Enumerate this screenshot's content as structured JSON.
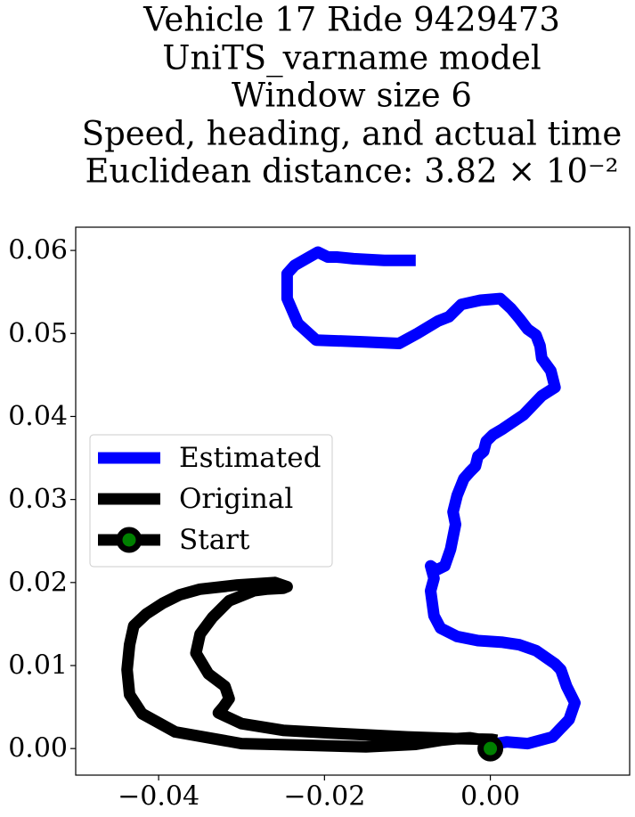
{
  "chart_data": {
    "type": "line",
    "title_lines": [
      "Vehicle 17 Ride 9429473",
      "UniTS_varname model",
      "Window size 6",
      "Speed, heading, and actual time",
      "Euclidean distance: 3.82 × 10⁻²"
    ],
    "xlabel": "",
    "ylabel": "",
    "xlim": [
      -0.05,
      0.0168
    ],
    "ylim": [
      -0.0032,
      0.0628
    ],
    "x_ticks": [
      {
        "value": -0.04,
        "label": "−0.04"
      },
      {
        "value": -0.02,
        "label": "−0.02"
      },
      {
        "value": 0.0,
        "label": "0.00"
      }
    ],
    "y_ticks": [
      {
        "value": 0.0,
        "label": "0.00"
      },
      {
        "value": 0.01,
        "label": "0.01"
      },
      {
        "value": 0.02,
        "label": "0.02"
      },
      {
        "value": 0.03,
        "label": "0.03"
      },
      {
        "value": 0.04,
        "label": "0.04"
      },
      {
        "value": 0.05,
        "label": "0.05"
      },
      {
        "value": 0.06,
        "label": "0.06"
      }
    ],
    "grid": false,
    "legend_position": "center-left",
    "legend": [
      {
        "label": "Estimated",
        "color": "#0000ff",
        "marker": false
      },
      {
        "label": "Original",
        "color": "#000000",
        "marker": false
      },
      {
        "label": "Start",
        "color": "#000000",
        "marker": true,
        "marker_face": "#008000"
      }
    ],
    "series": [
      {
        "name": "Estimated",
        "color": "#0000ff",
        "x": [
          0.0,
          0.002,
          0.0045,
          0.0075,
          0.0095,
          0.0102,
          0.0092,
          0.0085,
          0.0078,
          0.0055,
          0.0035,
          0.0015,
          -0.0015,
          -0.004,
          -0.006,
          -0.0068,
          -0.007,
          -0.0072,
          -0.0068,
          -0.0072,
          -0.0065,
          -0.0055,
          -0.0048,
          -0.0042,
          -0.0045,
          -0.004,
          -0.0032,
          -0.0025,
          -0.0018,
          -0.0015,
          -0.0008,
          -0.0005,
          0.0003,
          0.0015,
          0.004,
          0.0062,
          0.0078,
          0.0073,
          0.0062,
          0.006,
          0.0055,
          0.0045,
          0.0035,
          0.0025,
          0.0012,
          -0.0012,
          -0.0035,
          -0.005,
          -0.0063,
          -0.0088,
          -0.011,
          -0.0155,
          -0.021,
          -0.0232,
          -0.0245,
          -0.0245,
          -0.0236,
          -0.0222,
          -0.0208,
          -0.0196,
          -0.0185,
          -0.0165,
          -0.0128,
          -0.0095,
          -0.009
        ],
        "y": [
          0.0005,
          0.0008,
          0.0006,
          0.0014,
          0.0035,
          0.0055,
          0.0075,
          0.0095,
          0.0102,
          0.0118,
          0.0125,
          0.0128,
          0.013,
          0.0135,
          0.0145,
          0.016,
          0.0175,
          0.019,
          0.0205,
          0.022,
          0.0215,
          0.022,
          0.024,
          0.027,
          0.0285,
          0.0305,
          0.0325,
          0.0333,
          0.034,
          0.0352,
          0.0358,
          0.037,
          0.0378,
          0.0385,
          0.0402,
          0.0425,
          0.0435,
          0.0455,
          0.047,
          0.0485,
          0.0498,
          0.0505,
          0.0518,
          0.053,
          0.0542,
          0.054,
          0.0535,
          0.052,
          0.0515,
          0.05,
          0.0488,
          0.049,
          0.0492,
          0.0512,
          0.0542,
          0.0572,
          0.0582,
          0.059,
          0.0598,
          0.0592,
          0.0592,
          0.059,
          0.0588,
          0.0588,
          0.0588
        ]
      },
      {
        "name": "Original",
        "color": "#000000",
        "x": [
          0.0,
          -0.0025,
          -0.004,
          -0.006,
          -0.009,
          -0.015,
          -0.022,
          -0.03,
          -0.038,
          -0.042,
          -0.0435,
          -0.0438,
          -0.0435,
          -0.043,
          -0.0415,
          -0.0395,
          -0.0375,
          -0.035,
          -0.0305,
          -0.026,
          -0.0245,
          -0.025,
          -0.027,
          -0.0285,
          -0.0315,
          -0.0335,
          -0.035,
          -0.0355,
          -0.034,
          -0.032,
          -0.0315,
          -0.0322,
          -0.0328,
          -0.03,
          -0.025,
          -0.018,
          -0.01,
          -0.004,
          0.0002,
          0.0008
        ],
        "y": [
          0.0009,
          0.0013,
          0.0012,
          0.001,
          0.0005,
          0.0002,
          0.0004,
          0.0006,
          0.002,
          0.0042,
          0.0065,
          0.0095,
          0.0125,
          0.0148,
          0.0162,
          0.0175,
          0.0185,
          0.0192,
          0.0197,
          0.02,
          0.0195,
          0.0193,
          0.0192,
          0.019,
          0.0178,
          0.0158,
          0.0138,
          0.0115,
          0.009,
          0.0075,
          0.006,
          0.005,
          0.0043,
          0.003,
          0.0022,
          0.0018,
          0.0014,
          0.0012,
          0.0011,
          0.001
        ]
      }
    ],
    "start_point": {
      "x": 0.0,
      "y": 0.0,
      "label": "Start",
      "edge_color": "#000000",
      "face_color": "#008000"
    }
  }
}
